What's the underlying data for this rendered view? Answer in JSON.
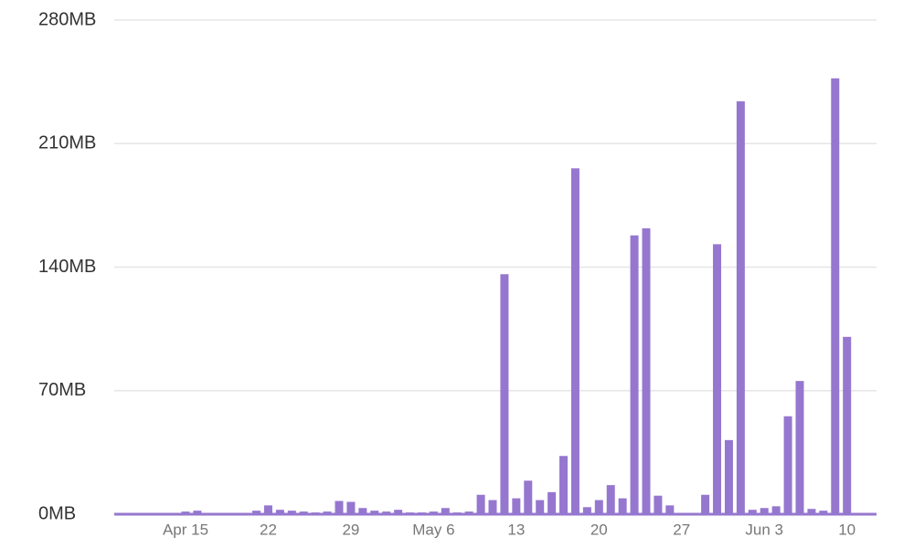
{
  "chart_data": {
    "type": "bar",
    "categories": [
      null,
      null,
      null,
      null,
      null,
      null,
      "Apr 15",
      null,
      null,
      null,
      null,
      null,
      null,
      "22",
      null,
      null,
      null,
      null,
      null,
      null,
      "29",
      null,
      null,
      null,
      null,
      null,
      null,
      "May 6",
      null,
      null,
      null,
      null,
      null,
      null,
      "13",
      null,
      null,
      null,
      null,
      null,
      null,
      "20",
      null,
      null,
      null,
      null,
      null,
      null,
      "27",
      null,
      null,
      null,
      null,
      null,
      null,
      "Jun 3",
      null,
      null,
      null,
      null,
      null,
      null,
      "10",
      null,
      null
    ],
    "values": [
      0,
      0,
      0,
      0,
      0,
      0,
      1.5,
      2,
      0,
      0,
      0,
      0,
      2,
      5,
      2.5,
      2,
      1.5,
      1,
      1.5,
      7.5,
      7,
      3.5,
      2,
      1.5,
      2.5,
      1,
      1,
      1.5,
      3.5,
      1,
      1.5,
      11,
      8,
      136,
      9,
      19,
      8,
      12.5,
      33,
      196,
      4,
      8,
      16.5,
      9,
      158,
      162,
      10.5,
      5,
      0,
      0,
      11,
      153,
      42,
      234,
      2.5,
      3.5,
      4.5,
      55.5,
      75.5,
      3,
      2,
      247,
      100.5,
      0,
      0
    ],
    "color": "#9677cf",
    "ylim": [
      0,
      280
    ],
    "yticks": [
      {
        "value": 0,
        "label": "0MB"
      },
      {
        "value": 70,
        "label": "70MB"
      },
      {
        "value": 140,
        "label": "140MB"
      },
      {
        "value": 210,
        "label": "210MB"
      },
      {
        "value": 280,
        "label": "280MB"
      }
    ],
    "grid": true
  }
}
